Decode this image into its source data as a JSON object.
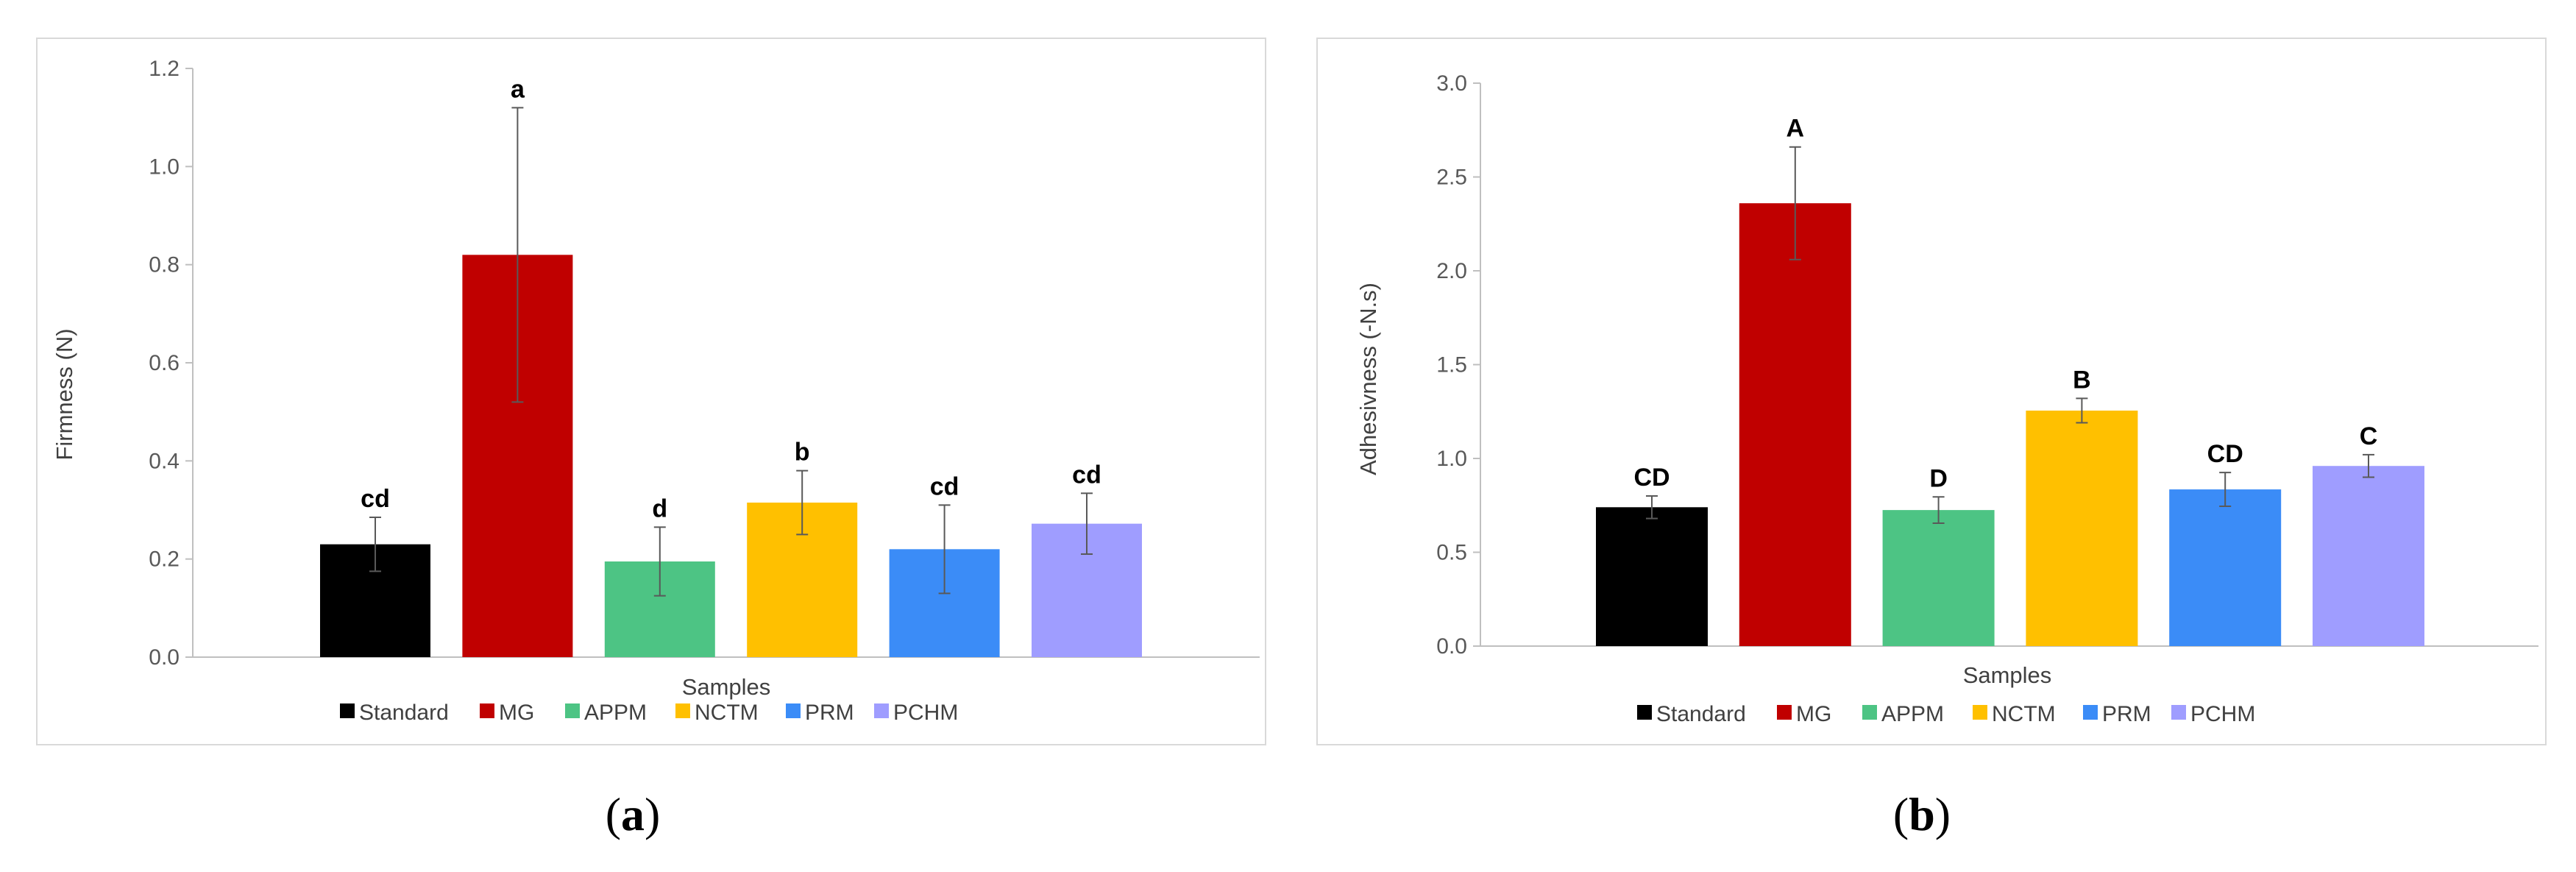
{
  "chart_data": [
    {
      "type": "bar",
      "panel_label": "a",
      "categories": [
        "Standard",
        "MG",
        "APPM",
        "NCTM",
        "PRM",
        "PCHM"
      ],
      "values": [
        0.23,
        0.82,
        0.195,
        0.315,
        0.22,
        0.272
      ],
      "errors": [
        0.055,
        0.3,
        0.07,
        0.065,
        0.09,
        0.062
      ],
      "significance": [
        "cd",
        "a",
        "d",
        "b",
        "cd",
        "cd"
      ],
      "colors": [
        "#000000",
        "#c00000",
        "#4dc484",
        "#ffc000",
        "#3b8cf7",
        "#9f9dff"
      ],
      "ylabel": "Firmness (N)",
      "xlabel": "Samples",
      "ylim": [
        0,
        1.2
      ],
      "ytick_labels": [
        "0.0",
        "0.2",
        "0.4",
        "0.6",
        "0.8",
        "1.0",
        "1.2"
      ],
      "legend": [
        "Standard",
        "MG",
        "APPM",
        "NCTM",
        "PRM",
        "PCHM"
      ],
      "legend_position": "bottom",
      "grid": false
    },
    {
      "type": "bar",
      "panel_label": "b",
      "categories": [
        "Standard",
        "MG",
        "APPM",
        "NCTM",
        "PRM",
        "PCHM"
      ],
      "values": [
        0.74,
        2.36,
        0.725,
        1.255,
        0.835,
        0.96
      ],
      "errors": [
        0.06,
        0.3,
        0.07,
        0.065,
        0.09,
        0.06
      ],
      "significance": [
        "CD",
        "A",
        "D",
        "B",
        "CD",
        "C"
      ],
      "colors": [
        "#000000",
        "#c00000",
        "#4dc484",
        "#ffc000",
        "#3b8cf7",
        "#9f9dff"
      ],
      "ylabel": "Adhesivness (-N.s)",
      "xlabel": "Samples",
      "ylim": [
        0,
        3.0
      ],
      "ytick_labels": [
        "0.0",
        "0.5",
        "1.0",
        "1.5",
        "2.0",
        "2.5",
        "3.0"
      ],
      "legend": [
        "Standard",
        "MG",
        "APPM",
        "NCTM",
        "PRM",
        "PCHM"
      ],
      "legend_position": "bottom",
      "grid": false
    }
  ]
}
